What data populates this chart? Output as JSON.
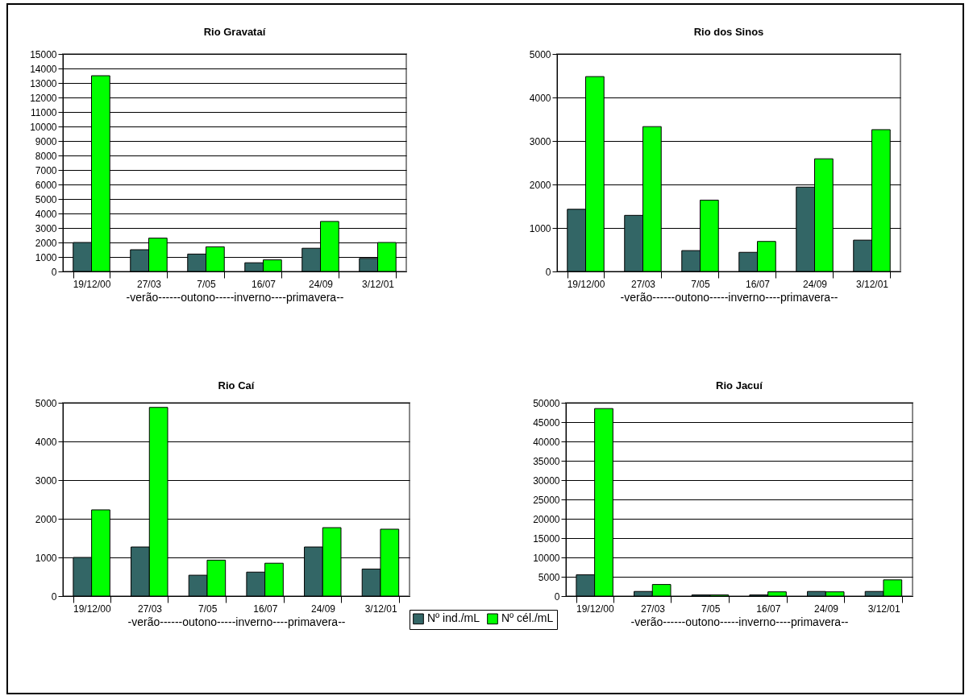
{
  "chart_data": [
    {
      "type": "bar",
      "title": "Rio Gravataí",
      "xlabel": "-verão------outono-----inverno----primavera--",
      "categories": [
        "19/12/00",
        "27/03",
        "7/05",
        "16/07",
        "24/09",
        "3/12/01"
      ],
      "series": [
        {
          "name": "Nº ind./mL",
          "color": "#336666",
          "values": [
            2000,
            1500,
            1200,
            600,
            1600,
            900
          ]
        },
        {
          "name": "Nº cél./mL",
          "color": "#00ff00",
          "values": [
            13500,
            2300,
            1700,
            800,
            3450,
            2000
          ]
        }
      ],
      "ylim": [
        0,
        15000
      ],
      "yticks": [
        0,
        1000,
        2000,
        3000,
        4000,
        5000,
        6000,
        7000,
        8000,
        9000,
        10000,
        11000,
        12000,
        13000,
        14000,
        15000
      ],
      "grid": "y",
      "legend": "bottom"
    },
    {
      "type": "bar",
      "title": "Rio dos Sinos",
      "xlabel": "-verão------outono-----inverno----primavera--",
      "categories": [
        "19/12/00",
        "27/03",
        "7/05",
        "16/07",
        "24/09",
        "3/12/01"
      ],
      "series": [
        {
          "name": "Nº ind./mL",
          "color": "#336666",
          "values": [
            1430,
            1290,
            480,
            440,
            1940,
            720
          ]
        },
        {
          "name": "Nº cél./mL",
          "color": "#00ff00",
          "values": [
            4480,
            3330,
            1640,
            690,
            2590,
            3260
          ]
        }
      ],
      "ylim": [
        0,
        5000
      ],
      "yticks": [
        0,
        1000,
        2000,
        3000,
        4000,
        5000
      ],
      "grid": "y",
      "legend": "bottom"
    },
    {
      "type": "bar",
      "title": "Rio Caí",
      "xlabel": "-verão------outono-----inverno----primavera--",
      "categories": [
        "19/12/00",
        "27/03",
        "7/05",
        "16/07",
        "24/09",
        "3/12/01"
      ],
      "series": [
        {
          "name": "Nº ind./mL",
          "color": "#336666",
          "values": [
            1000,
            1270,
            540,
            620,
            1270,
            700
          ]
        },
        {
          "name": "Nº cél./mL",
          "color": "#00ff00",
          "values": [
            2230,
            4880,
            930,
            850,
            1770,
            1730
          ]
        }
      ],
      "ylim": [
        0,
        5000
      ],
      "yticks": [
        0,
        1000,
        2000,
        3000,
        4000,
        5000
      ],
      "grid": "y",
      "legend": "bottom"
    },
    {
      "type": "bar",
      "title": "Rio Jacuí",
      "xlabel": "-verão------outono-----inverno----primavera--",
      "categories": [
        "19/12/00",
        "27/03",
        "7/05",
        "16/07",
        "24/09",
        "3/12/01"
      ],
      "series": [
        {
          "name": "Nº ind./mL",
          "color": "#336666",
          "values": [
            5500,
            1200,
            300,
            300,
            1200,
            1200
          ]
        },
        {
          "name": "Nº cél./mL",
          "color": "#00ff00",
          "values": [
            48500,
            3000,
            300,
            1100,
            1100,
            4200
          ]
        }
      ],
      "ylim": [
        0,
        50000
      ],
      "yticks": [
        0,
        5000,
        10000,
        15000,
        20000,
        25000,
        30000,
        35000,
        40000,
        45000,
        50000
      ],
      "grid": "y",
      "legend": "bottom"
    }
  ]
}
